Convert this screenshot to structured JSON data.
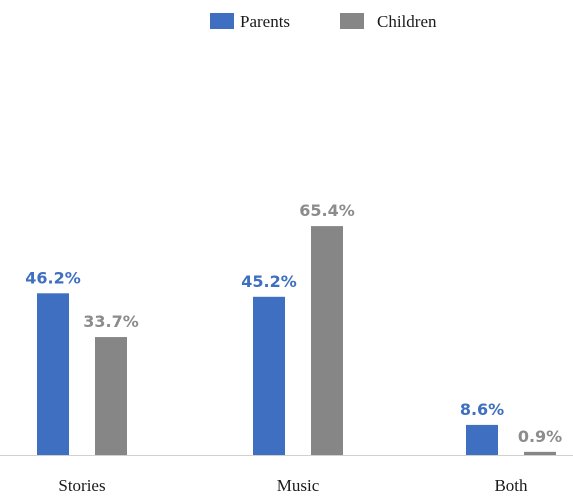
{
  "chart_data": {
    "type": "bar",
    "categories": [
      "Stories",
      "Music",
      "Both"
    ],
    "series": [
      {
        "name": "Parents",
        "values": [
          46.2,
          45.2,
          8.6
        ],
        "labels": [
          "46.2%",
          "45.2%",
          "8.6%"
        ],
        "color": "#3f6fc1",
        "label_color": "#3f6fc1"
      },
      {
        "name": "Children",
        "values": [
          33.7,
          65.4,
          0.9
        ],
        "labels": [
          "33.7%",
          "65.4%",
          "0.9%"
        ],
        "color": "#868686",
        "label_color": "#8c8c8c"
      }
    ],
    "unit": "%",
    "ylim": [
      0,
      70
    ],
    "legend_position": "top-center",
    "grid": false,
    "axis_color": "#d0d0d0"
  }
}
